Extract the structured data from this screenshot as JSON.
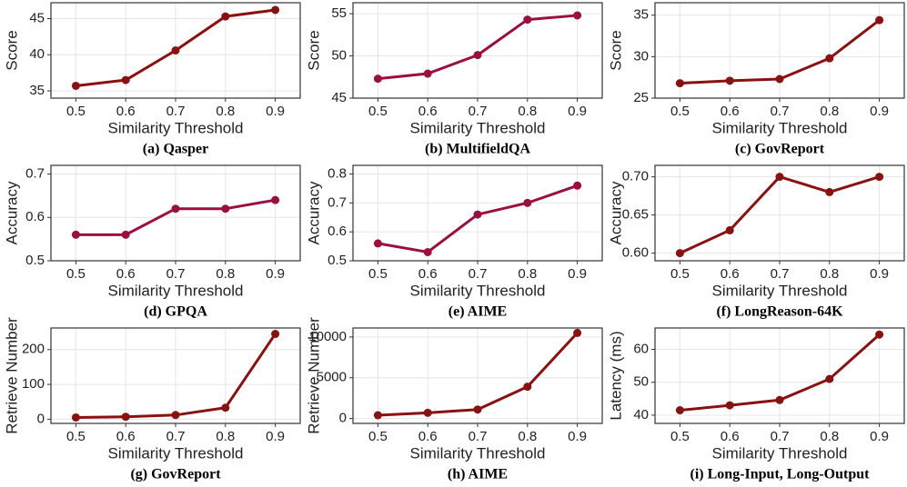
{
  "chart_data": [
    {
      "type": "line",
      "caption": "(a) Qasper",
      "xlabel": "Similarity Threshold",
      "ylabel": "Score",
      "x": [
        0.5,
        0.6,
        0.7,
        0.8,
        0.9
      ],
      "xlim": [
        0.45,
        0.95
      ],
      "xticks": [
        0.5,
        0.6,
        0.7,
        0.8,
        0.9
      ],
      "ylim": [
        34.0,
        47.2
      ],
      "yticks": [
        35,
        40,
        45
      ],
      "grid": true,
      "series": [
        {
          "name": "Qasper",
          "color": "#8b1010",
          "values": [
            35.7,
            36.5,
            40.6,
            45.3,
            46.2
          ]
        }
      ]
    },
    {
      "type": "line",
      "caption": "(b) MultifieldQA",
      "xlabel": "Similarity Threshold",
      "ylabel": "Score",
      "x": [
        0.5,
        0.6,
        0.7,
        0.8,
        0.9
      ],
      "xlim": [
        0.45,
        0.95
      ],
      "xticks": [
        0.5,
        0.6,
        0.7,
        0.8,
        0.9
      ],
      "ylim": [
        45,
        56.3
      ],
      "yticks": [
        45,
        50,
        55
      ],
      "grid": true,
      "series": [
        {
          "name": "MultifieldQA",
          "color": "#9b0e3e",
          "values": [
            47.3,
            47.9,
            50.1,
            54.3,
            54.8
          ]
        }
      ]
    },
    {
      "type": "line",
      "caption": "(c) GovReport",
      "xlabel": "Similarity Threshold",
      "ylabel": "Score",
      "x": [
        0.5,
        0.6,
        0.7,
        0.8,
        0.9
      ],
      "xlim": [
        0.45,
        0.95
      ],
      "xticks": [
        0.5,
        0.6,
        0.7,
        0.8,
        0.9
      ],
      "ylim": [
        25,
        36.5
      ],
      "yticks": [
        25,
        30,
        35
      ],
      "grid": true,
      "series": [
        {
          "name": "GovReport",
          "color": "#8b1010",
          "values": [
            26.8,
            27.1,
            27.3,
            29.8,
            34.4
          ]
        }
      ]
    },
    {
      "type": "line",
      "caption": "(d) GPQA",
      "xlabel": "Similarity Threshold",
      "ylabel": "Accuracy",
      "x": [
        0.5,
        0.6,
        0.7,
        0.8,
        0.9
      ],
      "xlim": [
        0.45,
        0.95
      ],
      "xticks": [
        0.5,
        0.6,
        0.7,
        0.8,
        0.9
      ],
      "ylim": [
        0.5,
        0.72
      ],
      "yticks": [
        0.5,
        0.6,
        0.7
      ],
      "grid": true,
      "series": [
        {
          "name": "GPQA",
          "color": "#9b0e3e",
          "values": [
            0.56,
            0.56,
            0.62,
            0.62,
            0.64
          ]
        }
      ]
    },
    {
      "type": "line",
      "caption": "(e) AIME",
      "xlabel": "Similarity Threshold",
      "ylabel": "Accuracy",
      "x": [
        0.5,
        0.6,
        0.7,
        0.8,
        0.9
      ],
      "xlim": [
        0.45,
        0.95
      ],
      "xticks": [
        0.5,
        0.6,
        0.7,
        0.8,
        0.9
      ],
      "ylim": [
        0.5,
        0.83
      ],
      "yticks": [
        0.5,
        0.6,
        0.7,
        0.8
      ],
      "grid": true,
      "series": [
        {
          "name": "AIME",
          "color": "#9b0e3e",
          "values": [
            0.56,
            0.53,
            0.66,
            0.7,
            0.76
          ]
        }
      ]
    },
    {
      "type": "line",
      "caption": "(f) LongReason-64K",
      "xlabel": "Similarity Threshold",
      "ylabel": "Accuracy",
      "x": [
        0.5,
        0.6,
        0.7,
        0.8,
        0.9
      ],
      "xlim": [
        0.45,
        0.95
      ],
      "xticks": [
        0.5,
        0.6,
        0.7,
        0.8,
        0.9
      ],
      "ylim": [
        0.59,
        0.715
      ],
      "yticks": [
        {
          "value": 0.6,
          "label": "0.60"
        },
        {
          "value": 0.65,
          "label": "0.65"
        },
        {
          "value": 0.7,
          "label": "0.70"
        }
      ],
      "grid": true,
      "series": [
        {
          "name": "LongReason-64K",
          "color": "#8b1010",
          "values": [
            0.6,
            0.63,
            0.7,
            0.68,
            0.7
          ]
        }
      ]
    },
    {
      "type": "line",
      "caption": "(g) GovReport",
      "xlabel": "Similarity Threshold",
      "ylabel": "Retrieve Number",
      "x": [
        0.5,
        0.6,
        0.7,
        0.8,
        0.9
      ],
      "xlim": [
        0.45,
        0.95
      ],
      "xticks": [
        0.5,
        0.6,
        0.7,
        0.8,
        0.9
      ],
      "ylim": [
        -12,
        262
      ],
      "yticks": [
        0,
        100,
        200
      ],
      "grid": true,
      "series": [
        {
          "name": "GovReport",
          "color": "#8b1010",
          "values": [
            5,
            7,
            12,
            33,
            245
          ]
        }
      ]
    },
    {
      "type": "line",
      "caption": "(h) AIME",
      "xlabel": "Similarity Threshold",
      "ylabel": "Retrieve Number",
      "x": [
        0.5,
        0.6,
        0.7,
        0.8,
        0.9
      ],
      "xlim": [
        0.45,
        0.95
      ],
      "xticks": [
        0.5,
        0.6,
        0.7,
        0.8,
        0.9
      ],
      "ylim": [
        -600,
        11100
      ],
      "yticks": [
        0,
        5000,
        10000
      ],
      "grid": true,
      "series": [
        {
          "name": "AIME",
          "color": "#8b1010",
          "values": [
            400,
            700,
            1100,
            3900,
            10500
          ]
        }
      ]
    },
    {
      "type": "line",
      "caption": "(i) Long-Input, Long-Output",
      "xlabel": "Similarity Threshold",
      "ylabel": "Latency (ms)",
      "x": [
        0.5,
        0.6,
        0.7,
        0.8,
        0.9
      ],
      "xlim": [
        0.45,
        0.95
      ],
      "xticks": [
        0.5,
        0.6,
        0.7,
        0.8,
        0.9
      ],
      "ylim": [
        37.5,
        66.5
      ],
      "yticks": [
        40,
        50,
        60
      ],
      "grid": true,
      "series": [
        {
          "name": "Latency",
          "color": "#8b1010",
          "values": [
            41.5,
            43,
            44.6,
            51,
            64.5
          ]
        }
      ]
    }
  ]
}
